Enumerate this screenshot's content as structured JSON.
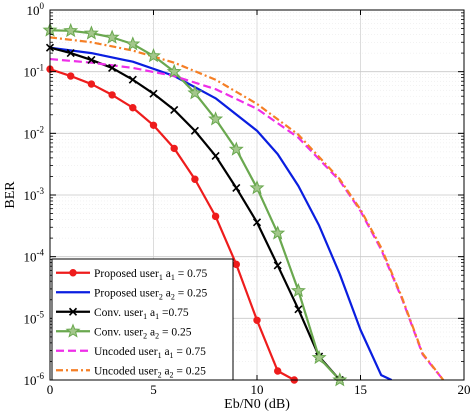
{
  "chart_data": {
    "type": "line",
    "title": "",
    "xlabel": "Eb/N0 (dB)",
    "ylabel": "BER",
    "xlim": [
      0,
      20
    ],
    "ylim": [
      1e-06,
      1
    ],
    "yscale": "log",
    "grid": true,
    "legend_position": "bottom-left",
    "x_ticks": [
      "0",
      "5",
      "10",
      "15",
      "20"
    ],
    "y_ticks": [
      {
        "base": "10",
        "exp": "0"
      },
      {
        "base": "10",
        "exp": "-1"
      },
      {
        "base": "10",
        "exp": "-2"
      },
      {
        "base": "10",
        "exp": "-3"
      },
      {
        "base": "10",
        "exp": "-4"
      },
      {
        "base": "10",
        "exp": "-5"
      },
      {
        "base": "10",
        "exp": "-6"
      }
    ],
    "series": [
      {
        "label": "Proposed user",
        "sub1": "1",
        "coef": " a",
        "sub2": "1",
        "value": " = 0.75",
        "color": "#ee1c1c",
        "style": "solid",
        "marker": "circle",
        "x": [
          0,
          1,
          2,
          3,
          4,
          5,
          6,
          7,
          8,
          9,
          10,
          11,
          11.8
        ],
        "y": [
          0.11,
          0.085,
          0.063,
          0.042,
          0.026,
          0.0135,
          0.0057,
          0.0018,
          0.00045,
          7.5e-05,
          9.3e-06,
          1.4e-06,
          1e-06
        ]
      },
      {
        "label": "Proposed user",
        "sub1": "2",
        "coef": " a",
        "sub2": "2",
        "value": " = 0.25",
        "color": "#0a1ee0",
        "style": "solid",
        "marker": "none",
        "x": [
          0,
          2,
          4,
          6,
          8,
          10,
          11,
          12,
          13,
          14,
          15,
          16,
          16.5
        ],
        "y": [
          0.245,
          0.2,
          0.145,
          0.085,
          0.037,
          0.011,
          0.0046,
          0.0014,
          0.00032,
          5.2e-05,
          6.5e-06,
          1.2e-06,
          1e-06
        ]
      },
      {
        "label": "Conv. user",
        "sub1": "1",
        "coef": " a",
        "sub2": "1",
        "value": " =0.75",
        "color": "#000000",
        "style": "solid",
        "marker": "x",
        "x": [
          0,
          1,
          2,
          3,
          4,
          5,
          6,
          7,
          8,
          9,
          10,
          11,
          12,
          13,
          14
        ],
        "y": [
          0.245,
          0.2,
          0.155,
          0.115,
          0.074,
          0.044,
          0.024,
          0.011,
          0.0043,
          0.0013,
          0.00036,
          7.2e-05,
          1.4e-05,
          2.4e-06,
          1e-06
        ]
      },
      {
        "label": "Conv. user",
        "sub1": "2",
        "coef": " a",
        "sub2": "2",
        "value": " = 0.25",
        "color": "#6aa84f",
        "style": "solid",
        "marker": "star",
        "x": [
          0,
          1,
          2,
          3,
          4,
          5,
          6,
          7,
          8,
          9,
          10,
          11,
          12,
          13,
          14
        ],
        "y": [
          0.47,
          0.46,
          0.42,
          0.36,
          0.28,
          0.18,
          0.1,
          0.045,
          0.017,
          0.0055,
          0.0013,
          0.00024,
          2.8e-05,
          2.3e-06,
          1e-06
        ]
      },
      {
        "label": "Uncoded user",
        "sub1": "1",
        "coef": " a",
        "sub2": "1",
        "value": " = 0.75",
        "color": "#ee2ee8",
        "style": "dashed",
        "marker": "none",
        "x": [
          0,
          2,
          4,
          6,
          8,
          10,
          12,
          14,
          15,
          16,
          17,
          18,
          19
        ],
        "y": [
          0.16,
          0.14,
          0.115,
          0.085,
          0.052,
          0.025,
          0.0085,
          0.0017,
          0.00055,
          0.00013,
          2.1e-05,
          2.6e-06,
          1e-06
        ]
      },
      {
        "label": "Uncoded user",
        "sub1": "2",
        "coef": " a",
        "sub2": "2",
        "value": " = 0.25",
        "color": "#f57f25",
        "style": "dashdot",
        "marker": "none",
        "x": [
          0,
          2,
          4,
          6,
          8,
          10,
          12,
          14,
          15,
          16,
          17,
          18,
          19
        ],
        "y": [
          0.36,
          0.3,
          0.22,
          0.14,
          0.074,
          0.03,
          0.0095,
          0.0018,
          0.00058,
          0.00014,
          2.2e-05,
          2.7e-06,
          1e-06
        ]
      }
    ]
  }
}
